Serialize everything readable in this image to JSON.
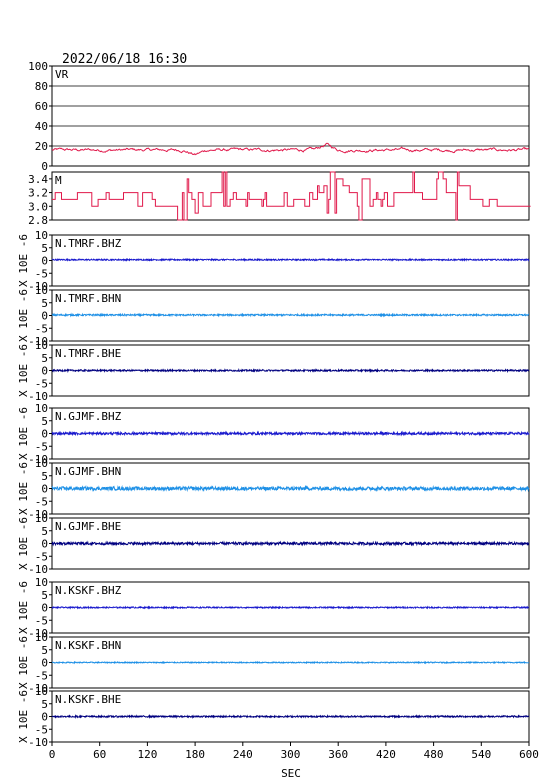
{
  "header": {
    "timestamp": "2022/06/18 16:30"
  },
  "chart_data": {
    "type": "line",
    "xlabel": "SEC",
    "xlim": [
      0,
      600
    ],
    "xticks": [
      0,
      60,
      120,
      180,
      240,
      300,
      360,
      420,
      480,
      540,
      600
    ],
    "ylabel_side": "X 10E -6",
    "panels": [
      {
        "id": "vr",
        "label": "VR",
        "color": "#e0184a",
        "ylim": [
          0,
          100
        ],
        "yticks": [
          0,
          20,
          40,
          60,
          80,
          100
        ],
        "grid": true,
        "series": {
          "baseline": 16,
          "amplitude": 3,
          "kind": "noise",
          "events": [
            {
              "x": 180,
              "value": 10
            },
            {
              "x": 345,
              "value": 23
            }
          ]
        }
      },
      {
        "id": "mag",
        "label": "M",
        "color": "#e0184a",
        "ylim": [
          2.8,
          3.5
        ],
        "yticks": [
          2.8,
          3.0,
          3.2,
          3.4
        ],
        "grid": false,
        "series": {
          "baseline": 3.1,
          "kind": "step",
          "levels": [
            2.8,
            2.9,
            3.0,
            3.1,
            3.2,
            3.3,
            3.4,
            3.5
          ]
        }
      },
      {
        "id": "tmrf-bhz",
        "label": "N.TMRF.BHZ",
        "color": "#1a1acd",
        "ylim": [
          -10,
          10
        ],
        "yticks": [
          -10,
          -5,
          0,
          5,
          10
        ],
        "offset": 0.3,
        "noise": 0.25
      },
      {
        "id": "tmrf-bhn",
        "label": "N.TMRF.BHN",
        "color": "#1e90e6",
        "ylim": [
          -10,
          10
        ],
        "yticks": [
          -10,
          -5,
          0,
          5,
          10
        ],
        "offset": 0.2,
        "noise": 0.3
      },
      {
        "id": "tmrf-bhe",
        "label": "N.TMRF.BHE",
        "color": "#000080",
        "ylim": [
          -10,
          10
        ],
        "yticks": [
          -10,
          -5,
          0,
          5,
          10
        ],
        "offset": 0.0,
        "noise": 0.3
      },
      {
        "id": "gjmf-bhz",
        "label": "N.GJMF.BHZ",
        "color": "#1a1acd",
        "ylim": [
          -10,
          10
        ],
        "yticks": [
          -10,
          -5,
          0,
          5,
          10
        ],
        "offset": 0.0,
        "noise": 0.45
      },
      {
        "id": "gjmf-bhn",
        "label": "N.GJMF.BHN",
        "color": "#1e90e6",
        "ylim": [
          -10,
          10
        ],
        "yticks": [
          -10,
          -5,
          0,
          5,
          10
        ],
        "offset": 0.0,
        "noise": 0.7
      },
      {
        "id": "gjmf-bhe",
        "label": "N.GJMF.BHE",
        "color": "#000080",
        "ylim": [
          -10,
          10
        ],
        "yticks": [
          -10,
          -5,
          0,
          5,
          10
        ],
        "offset": 0.0,
        "noise": 0.5
      },
      {
        "id": "kskf-bhz",
        "label": "N.KSKF.BHZ",
        "color": "#1a1acd",
        "ylim": [
          -10,
          10
        ],
        "yticks": [
          -10,
          -5,
          0,
          5,
          10
        ],
        "offset": 0.0,
        "noise": 0.25
      },
      {
        "id": "kskf-bhn",
        "label": "N.KSKF.BHN",
        "color": "#1e90e6",
        "ylim": [
          -10,
          10
        ],
        "yticks": [
          -10,
          -5,
          0,
          5,
          10
        ],
        "offset": 0.0,
        "noise": 0.2
      },
      {
        "id": "kskf-bhe",
        "label": "N.KSKF.BHE",
        "color": "#000080",
        "ylim": [
          -10,
          10
        ],
        "yticks": [
          -10,
          -5,
          0,
          5,
          10
        ],
        "offset": 0.0,
        "noise": 0.3
      }
    ]
  }
}
